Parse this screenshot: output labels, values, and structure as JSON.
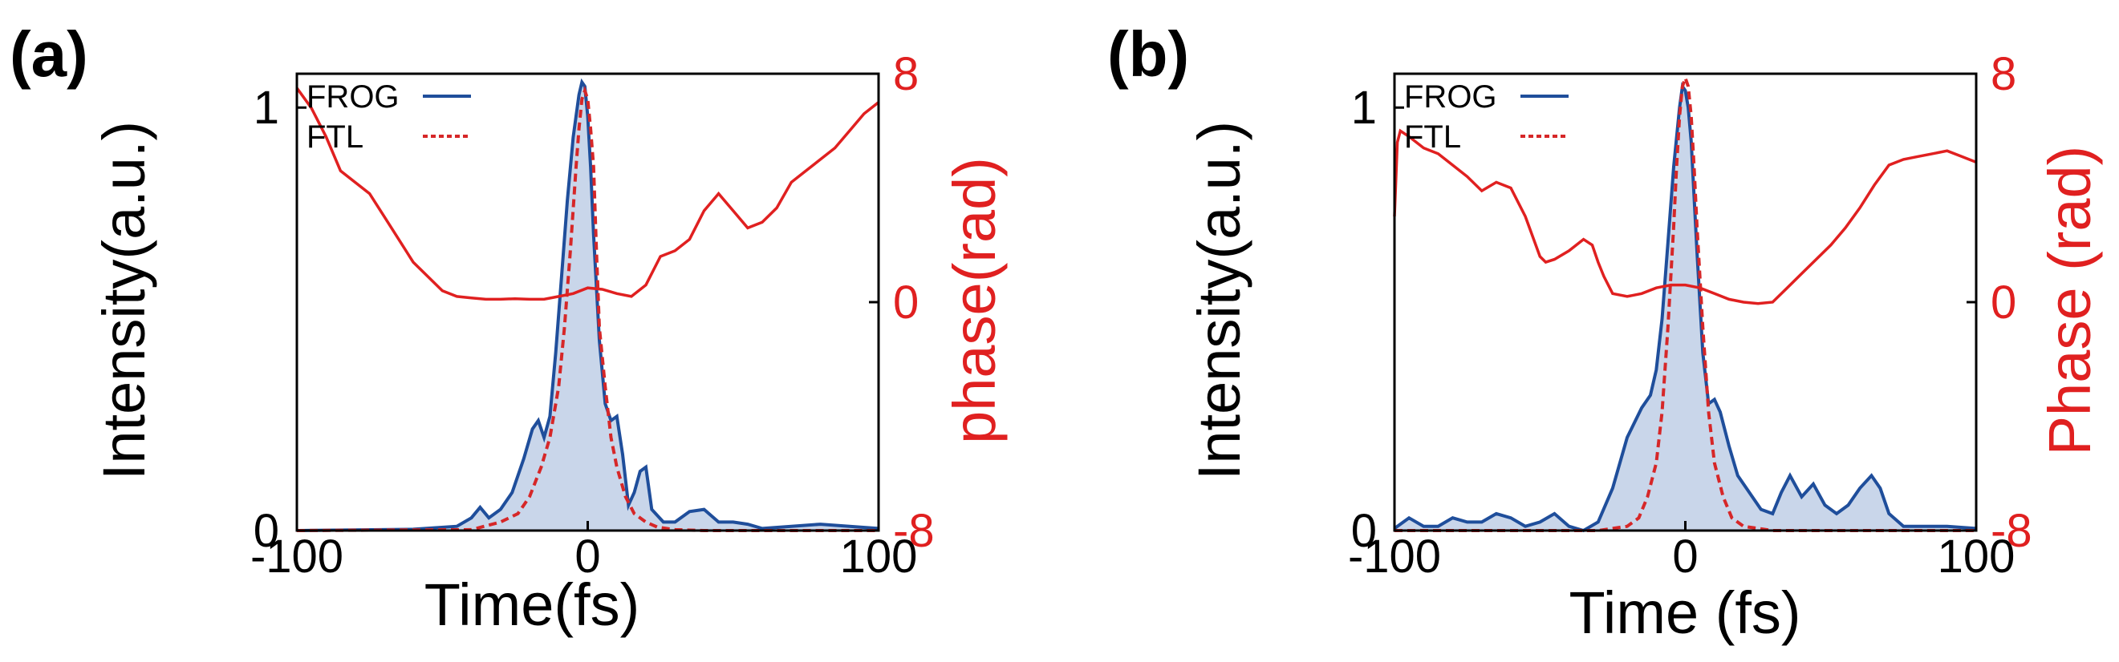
{
  "colors": {
    "intensity": "#1f4e9b",
    "fill": "#c9d6ea",
    "ftl": "#d62728",
    "phase": "#e02020",
    "axis": "#000000"
  },
  "chart_data": [
    {
      "type": "line",
      "panel_label": "(a)",
      "xlabel": "Time(fs)",
      "ylabel_left": "Intensity(a.u.)",
      "ylabel_right": "phase(rad)",
      "xlim": [
        -100,
        100
      ],
      "ylim_left": [
        0,
        1.08
      ],
      "ylim_right": [
        -8,
        8
      ],
      "xticks": [
        "-100",
        "0",
        "100"
      ],
      "yticks_left": [
        "0",
        "1"
      ],
      "yticks_right": [
        "-8",
        "0",
        "8"
      ],
      "legend": {
        "placement": "top-left",
        "entries": [
          "FROG",
          "FTL"
        ]
      },
      "series": [
        {
          "name": "FROG",
          "axis": "left",
          "style": "solid-filled",
          "x": [
            -100,
            -60,
            -45,
            -40,
            -37,
            -34,
            -30,
            -26,
            -22,
            -19,
            -17,
            -15,
            -13,
            -11,
            -9,
            -7,
            -5,
            -3,
            -2,
            -1,
            0,
            1,
            2,
            4,
            6,
            8,
            10,
            12,
            14,
            16,
            18,
            20,
            22,
            26,
            30,
            35,
            40,
            45,
            50,
            55,
            60,
            70,
            80,
            90,
            100
          ],
          "y": [
            0,
            0.003,
            0.01,
            0.03,
            0.055,
            0.03,
            0.05,
            0.09,
            0.17,
            0.24,
            0.26,
            0.22,
            0.27,
            0.42,
            0.6,
            0.78,
            0.93,
            1.03,
            1.06,
            1.05,
            0.98,
            0.86,
            0.7,
            0.45,
            0.3,
            0.26,
            0.27,
            0.18,
            0.06,
            0.09,
            0.14,
            0.15,
            0.05,
            0.02,
            0.02,
            0.045,
            0.05,
            0.02,
            0.02,
            0.015,
            0.005,
            0.01,
            0.015,
            0.01,
            0.005
          ]
        },
        {
          "name": "FTL",
          "axis": "left",
          "style": "dashed",
          "x": [
            -100,
            -40,
            -30,
            -24,
            -20,
            -16,
            -13,
            -10,
            -8,
            -6,
            -4,
            -3,
            -2,
            -1,
            0,
            1,
            2,
            3,
            4,
            6,
            8,
            10,
            13,
            16,
            20,
            24,
            30,
            40,
            100
          ],
          "y": [
            0,
            0.002,
            0.02,
            0.04,
            0.08,
            0.15,
            0.22,
            0.34,
            0.48,
            0.66,
            0.86,
            0.95,
            1.02,
            1.04,
            1.02,
            0.95,
            0.86,
            0.66,
            0.48,
            0.34,
            0.22,
            0.15,
            0.08,
            0.04,
            0.02,
            0.008,
            0.002,
            0,
            0
          ]
        },
        {
          "name": "Phase",
          "axis": "right",
          "style": "solid",
          "x": [
            -100,
            -95,
            -90,
            -85,
            -80,
            -75,
            -70,
            -65,
            -60,
            -55,
            -50,
            -45,
            -40,
            -35,
            -30,
            -25,
            -20,
            -15,
            -10,
            -5,
            0,
            5,
            10,
            15,
            20,
            25,
            30,
            35,
            40,
            45,
            50,
            55,
            60,
            65,
            70,
            75,
            80,
            85,
            90,
            95,
            100
          ],
          "y": [
            7.5,
            6.8,
            5.8,
            4.6,
            4.2,
            3.8,
            3.0,
            2.2,
            1.4,
            0.9,
            0.4,
            0.2,
            0.15,
            0.1,
            0.1,
            0.12,
            0.1,
            0.1,
            0.2,
            0.3,
            0.5,
            0.45,
            0.3,
            0.2,
            0.6,
            1.6,
            1.8,
            2.2,
            3.2,
            3.8,
            3.2,
            2.6,
            2.8,
            3.3,
            4.2,
            4.6,
            5.0,
            5.4,
            6.0,
            6.6,
            7.0
          ]
        }
      ]
    },
    {
      "type": "line",
      "panel_label": "(b)",
      "xlabel": "Time (fs)",
      "ylabel_left": "Intensity(a.u.)",
      "ylabel_right": "Phase (rad)",
      "xlim": [
        -100,
        100
      ],
      "ylim_left": [
        0,
        1.08
      ],
      "ylim_right": [
        -8,
        8
      ],
      "xticks": [
        "-100",
        "0",
        "100"
      ],
      "yticks_left": [
        "0",
        "1"
      ],
      "yticks_right": [
        "-8",
        "0",
        "8"
      ],
      "legend": {
        "placement": "top-left",
        "entries": [
          "FROG",
          "FTL"
        ]
      },
      "series": [
        {
          "name": "FROG",
          "axis": "left",
          "style": "solid-filled",
          "x": [
            -100,
            -95,
            -90,
            -85,
            -80,
            -75,
            -70,
            -65,
            -60,
            -55,
            -50,
            -45,
            -40,
            -35,
            -30,
            -25,
            -20,
            -15,
            -12,
            -10,
            -8,
            -6,
            -4,
            -2,
            -1,
            0,
            1,
            2,
            4,
            6,
            8,
            10,
            12,
            15,
            18,
            22,
            26,
            30,
            33,
            36,
            40,
            44,
            48,
            52,
            56,
            60,
            64,
            67,
            70,
            75,
            80,
            90,
            100
          ],
          "y": [
            0.005,
            0.03,
            0.01,
            0.01,
            0.03,
            0.02,
            0.02,
            0.04,
            0.03,
            0.01,
            0.02,
            0.04,
            0.01,
            0.0,
            0.02,
            0.1,
            0.22,
            0.29,
            0.32,
            0.38,
            0.5,
            0.68,
            0.86,
            1.0,
            1.05,
            1.04,
            1.0,
            0.92,
            0.66,
            0.42,
            0.3,
            0.31,
            0.28,
            0.2,
            0.13,
            0.09,
            0.05,
            0.04,
            0.09,
            0.13,
            0.08,
            0.11,
            0.06,
            0.04,
            0.06,
            0.1,
            0.13,
            0.1,
            0.04,
            0.01,
            0.01,
            0.01,
            0.005
          ]
        },
        {
          "name": "FTL",
          "axis": "left",
          "style": "dashed",
          "x": [
            -100,
            -30,
            -20,
            -16,
            -13,
            -10,
            -8,
            -6,
            -4,
            -3,
            -2,
            -1,
            0,
            1,
            2,
            3,
            4,
            6,
            8,
            10,
            13,
            16,
            20,
            30,
            100
          ],
          "y": [
            0,
            0,
            0.01,
            0.03,
            0.08,
            0.16,
            0.28,
            0.48,
            0.72,
            0.86,
            0.98,
            1.05,
            1.07,
            1.05,
            0.98,
            0.86,
            0.72,
            0.48,
            0.28,
            0.16,
            0.08,
            0.03,
            0.01,
            0,
            0
          ]
        },
        {
          "name": "Phase",
          "axis": "right",
          "style": "solid",
          "x": [
            -100,
            -99,
            -98,
            -95,
            -90,
            -85,
            -80,
            -75,
            -70,
            -65,
            -60,
            -55,
            -50,
            -48,
            -45,
            -40,
            -35,
            -32,
            -30,
            -28,
            -25,
            -20,
            -15,
            -10,
            -5,
            0,
            5,
            10,
            15,
            20,
            25,
            30,
            35,
            40,
            45,
            50,
            55,
            60,
            65,
            70,
            75,
            80,
            85,
            90,
            95,
            100
          ],
          "y": [
            3.0,
            5.6,
            6.0,
            5.8,
            5.4,
            5.2,
            4.8,
            4.4,
            3.9,
            4.2,
            4.0,
            3.0,
            1.6,
            1.4,
            1.5,
            1.8,
            2.2,
            2.0,
            1.4,
            0.9,
            0.3,
            0.2,
            0.3,
            0.5,
            0.6,
            0.6,
            0.5,
            0.3,
            0.1,
            0.0,
            -0.05,
            0.0,
            0.5,
            1.0,
            1.5,
            2.0,
            2.6,
            3.3,
            4.1,
            4.8,
            5.0,
            5.1,
            5.2,
            5.3,
            5.1,
            4.9
          ]
        }
      ]
    }
  ]
}
